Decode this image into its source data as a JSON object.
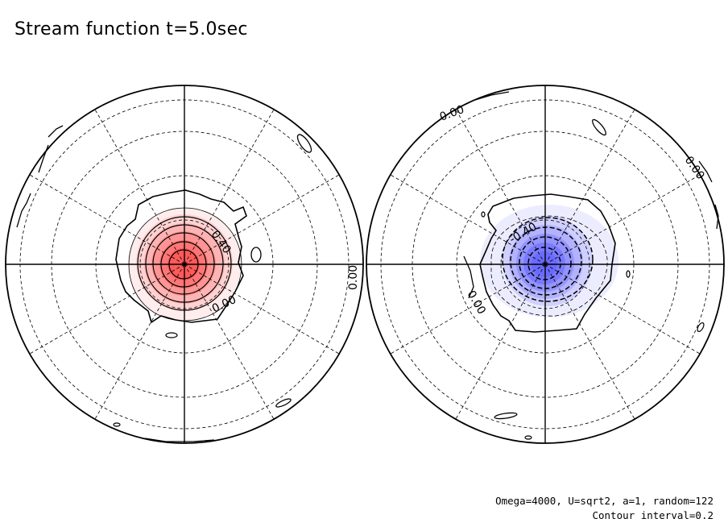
{
  "title": "Stream function t=5.0sec",
  "notes": {
    "line1": "Omega=4000, U=sqrt2, a=1, random=122",
    "line2": "Contour interval=0.2"
  },
  "colors": {
    "positive": "#ff5a5a",
    "negative": "#6a6aff",
    "line": "#000000",
    "background": "#ffffff"
  },
  "chart_data": [
    {
      "type": "contour",
      "hemisphere": "left",
      "projection": "polar",
      "contour_interval": 0.2,
      "sign": "positive",
      "levels": [
        0.0,
        0.2,
        0.4,
        0.6,
        0.8,
        1.0,
        1.2
      ],
      "labels": [
        "0.40",
        "0.00",
        "0.00"
      ]
    },
    {
      "type": "contour",
      "hemisphere": "right",
      "projection": "polar",
      "contour_interval": 0.2,
      "sign": "negative",
      "levels": [
        0.0,
        -0.2,
        -0.4,
        -0.6,
        -0.8,
        -1.0
      ],
      "labels": [
        "-0.40",
        "0.00",
        "0.00",
        "0.00"
      ]
    }
  ]
}
